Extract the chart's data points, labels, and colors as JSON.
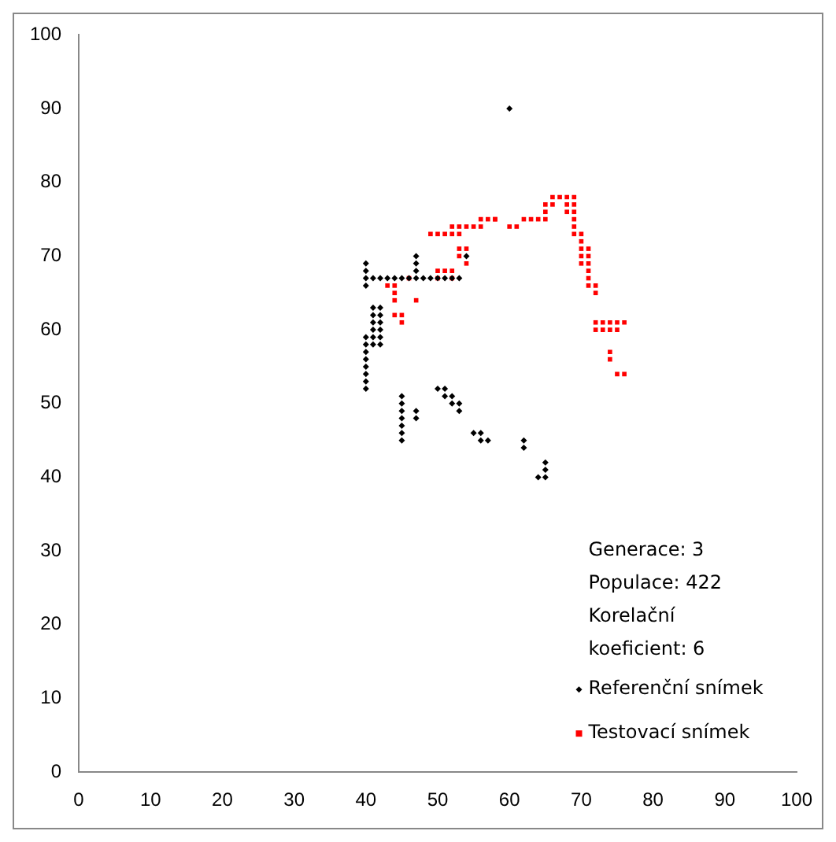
{
  "chart_data": {
    "type": "scatter",
    "xlim": [
      0,
      100
    ],
    "ylim": [
      0,
      100
    ],
    "xticks": [
      0,
      10,
      20,
      30,
      40,
      50,
      60,
      70,
      80,
      90,
      100
    ],
    "yticks": [
      0,
      10,
      20,
      30,
      40,
      50,
      60,
      70,
      80,
      90,
      100
    ],
    "grid": false,
    "legend": "bottom right",
    "annotations": [
      "Generace: 3",
      "Populace: 422",
      "Korelační koeficient: 6"
    ],
    "series": [
      {
        "name": "Referenční snímek",
        "color": "#000000",
        "marker": "diamond",
        "x": [
          40,
          40,
          40,
          40,
          40,
          40,
          40,
          40,
          40,
          40,
          40,
          40,
          41,
          41,
          41,
          41,
          41,
          41,
          42,
          42,
          42,
          42,
          42,
          42,
          41,
          42,
          43,
          44,
          45,
          46,
          47,
          48,
          49,
          50,
          51,
          52,
          53,
          47,
          47,
          47,
          45,
          45,
          45,
          45,
          45,
          45,
          45,
          47,
          47,
          50,
          51,
          51,
          52,
          52,
          53,
          53,
          55,
          56,
          56,
          57,
          62,
          62,
          65,
          65,
          64,
          65,
          54,
          60
        ],
        "values": [
          52,
          53,
          54,
          55,
          56,
          57,
          58,
          59,
          66,
          67,
          68,
          69,
          58,
          59,
          60,
          61,
          62,
          63,
          58,
          59,
          60,
          61,
          62,
          63,
          67,
          67,
          67,
          67,
          67,
          67,
          67,
          67,
          67,
          67,
          67,
          67,
          67,
          68,
          69,
          70,
          45,
          46,
          47,
          48,
          49,
          50,
          51,
          48,
          49,
          52,
          52,
          51,
          51,
          50,
          50,
          49,
          46,
          46,
          45,
          45,
          45,
          44,
          42,
          41,
          40,
          40,
          70,
          90
        ]
      },
      {
        "name": "Testovací snímek",
        "color": "#ff0000",
        "marker": "square",
        "x": [
          43,
          44,
          44,
          44,
          44,
          45,
          45,
          47,
          46,
          50,
          51,
          50,
          52,
          53,
          54,
          53,
          54,
          52,
          49,
          50,
          51,
          52,
          53,
          52,
          53,
          54,
          55,
          56,
          56,
          57,
          58,
          66,
          67,
          68,
          69,
          65,
          66,
          68,
          69,
          65,
          68,
          69,
          58,
          62,
          63,
          64,
          65,
          69,
          60,
          61,
          69,
          69,
          70,
          70,
          70,
          71,
          70,
          71,
          70,
          71,
          71,
          71,
          71,
          72,
          72,
          72,
          73,
          74,
          75,
          76,
          72,
          73,
          74,
          75,
          74,
          74,
          75,
          76
        ],
        "values": [
          66,
          66,
          65,
          64,
          62,
          62,
          61,
          64,
          67,
          67,
          68,
          68,
          67,
          71,
          71,
          70,
          69,
          68,
          73,
          73,
          73,
          73,
          73,
          74,
          74,
          74,
          74,
          74,
          75,
          75,
          75,
          78,
          78,
          78,
          78,
          77,
          77,
          77,
          77,
          76,
          76,
          76,
          75,
          75,
          75,
          75,
          75,
          75,
          74,
          74,
          74,
          73,
          73,
          72,
          71,
          71,
          70,
          70,
          69,
          69,
          68,
          67,
          66,
          66,
          65,
          61,
          61,
          61,
          61,
          61,
          60,
          60,
          60,
          60,
          57,
          56,
          54,
          54
        ]
      }
    ]
  }
}
